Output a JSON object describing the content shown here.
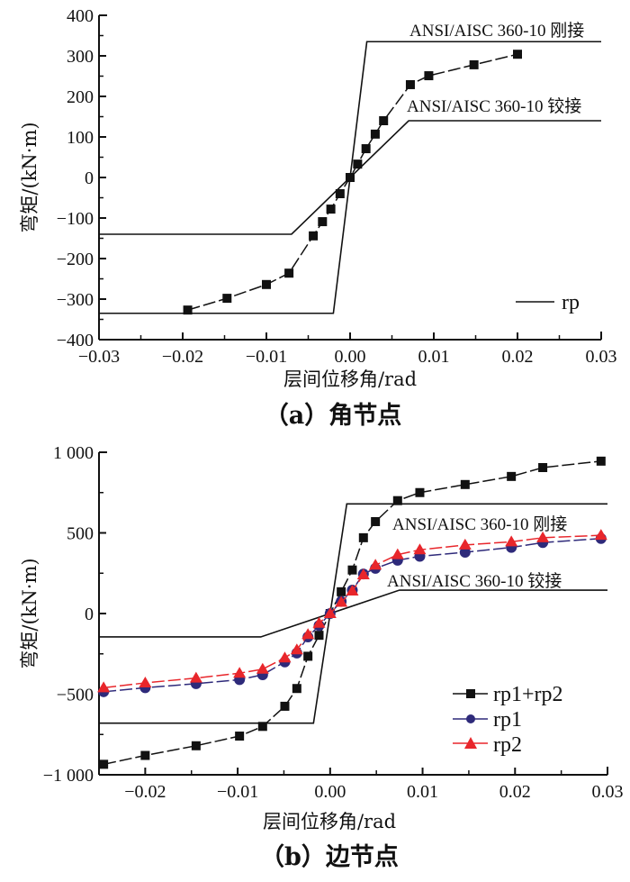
{
  "chart_data": [
    {
      "type": "line",
      "caption": "（a）角节点",
      "xlabel": "层间位移角/rad",
      "ylabel": "弯矩/(kN·m)",
      "xlim": [
        -0.03,
        0.03
      ],
      "ylim": [
        -400,
        400
      ],
      "xticks": [
        -0.03,
        -0.02,
        -0.01,
        0.0,
        0.01,
        0.02,
        0.03
      ],
      "xtick_labels": [
        "−0.03",
        "−0.02",
        "−0.01",
        "0.00",
        "0.01",
        "0.02",
        "0.03"
      ],
      "yticks": [
        -400,
        -300,
        -200,
        -100,
        0,
        100,
        200,
        300,
        400
      ],
      "ytick_labels": [
        "−400",
        "−300",
        "−200",
        "−100",
        "0",
        "100",
        "200",
        "300",
        "400"
      ],
      "annotations": [
        "ANSI/AISC 360-10 刚接",
        "ANSI/AISC 360-10 铰接"
      ],
      "reference_lines": [
        {
          "name": "ANSI/AISC 360-10 刚接",
          "x": [
            -0.03,
            -0.002,
            0.002,
            0.03
          ],
          "y": [
            -335,
            -335,
            335,
            335
          ]
        },
        {
          "name": "ANSI/AISC 360-10 铰接",
          "x": [
            -0.03,
            -0.007,
            0.007,
            0.03
          ],
          "y": [
            -140,
            -140,
            140,
            140
          ]
        }
      ],
      "legend": {
        "position": "bottom-right",
        "entries": [
          "rp"
        ]
      },
      "series": [
        {
          "name": "rp",
          "color": "#111111",
          "marker": "square",
          "x": [
            -0.0194,
            -0.0147,
            -0.01,
            -0.0073,
            -0.0044,
            -0.0033,
            -0.0023,
            -0.0012,
            0.0,
            0.0009,
            0.0019,
            0.003,
            0.004,
            0.0072,
            0.0094,
            0.0148,
            0.02
          ],
          "y": [
            -327,
            -298,
            -264,
            -236,
            -144,
            -109,
            -78,
            -40,
            0,
            33,
            71,
            107,
            140,
            229,
            251,
            278,
            304
          ]
        }
      ]
    },
    {
      "type": "line",
      "caption": "（b）边节点",
      "xlabel": "层间位移角/rad",
      "ylabel": "弯矩/(kN·m)",
      "xlim": [
        -0.025,
        0.03
      ],
      "ylim": [
        -1000,
        1000
      ],
      "xticks": [
        -0.02,
        -0.01,
        0.0,
        0.01,
        0.02,
        0.03
      ],
      "xtick_labels": [
        "−0.02",
        "−0.01",
        "0.00",
        "0.01",
        "0.02",
        "0.03"
      ],
      "yticks": [
        -1000,
        -500,
        0,
        500,
        1000
      ],
      "ytick_labels": [
        "−1 000",
        "−500",
        "0",
        "500",
        "1 000"
      ],
      "annotations": [
        "ANSI/AISC 360-10 刚接",
        "ANSI/AISC 360-10 铰接"
      ],
      "reference_lines": [
        {
          "name": "ANSI/AISC 360-10 刚接",
          "x": [
            -0.025,
            -0.0018,
            0.0018,
            0.03
          ],
          "y": [
            -680,
            -680,
            680,
            680
          ]
        },
        {
          "name": "ANSI/AISC 360-10 铰接",
          "x": [
            -0.025,
            -0.0075,
            0.0075,
            0.03
          ],
          "y": [
            -145,
            -145,
            145,
            145
          ]
        }
      ],
      "legend": {
        "position": "bottom-right",
        "entries": [
          "rp1+rp2",
          "rp1",
          "rp2"
        ]
      },
      "series": [
        {
          "name": "rp1+rp2",
          "color": "#111111",
          "marker": "square",
          "x": [
            -0.0245,
            -0.02,
            -0.0145,
            -0.0098,
            -0.0073,
            -0.0049,
            -0.0036,
            -0.0024,
            -0.0012,
            0.0,
            0.0012,
            0.0024,
            0.0036,
            0.0049,
            0.0073,
            0.0097,
            0.0146,
            0.0196,
            0.023,
            0.0293
          ],
          "y": [
            -935,
            -880,
            -820,
            -760,
            -700,
            -575,
            -465,
            -265,
            -135,
            0,
            135,
            270,
            470,
            570,
            700,
            750,
            800,
            850,
            905,
            945
          ]
        },
        {
          "name": "rp1",
          "color": "#2e2a7a",
          "marker": "circle",
          "x": [
            -0.0245,
            -0.02,
            -0.0145,
            -0.0098,
            -0.0073,
            -0.0049,
            -0.0036,
            -0.0024,
            -0.0012,
            0.0,
            0.0012,
            0.0024,
            0.0036,
            0.0049,
            0.0073,
            0.0097,
            0.0146,
            0.0196,
            0.023,
            0.0293
          ],
          "y": [
            -485,
            -460,
            -435,
            -410,
            -380,
            -300,
            -245,
            -145,
            -75,
            0,
            75,
            145,
            245,
            280,
            330,
            355,
            380,
            410,
            440,
            465
          ]
        },
        {
          "name": "rp2",
          "color": "#e8262b",
          "marker": "triangle",
          "x": [
            -0.0245,
            -0.02,
            -0.0145,
            -0.0098,
            -0.0073,
            -0.0049,
            -0.0036,
            -0.0024,
            -0.0012,
            0.0,
            0.0012,
            0.0024,
            0.0036,
            0.0049,
            0.0073,
            0.0097,
            0.0146,
            0.0196,
            0.023,
            0.0293
          ],
          "y": [
            -460,
            -430,
            -400,
            -370,
            -345,
            -275,
            -225,
            -130,
            -60,
            0,
            70,
            140,
            240,
            300,
            365,
            395,
            425,
            445,
            470,
            485
          ]
        }
      ]
    }
  ]
}
